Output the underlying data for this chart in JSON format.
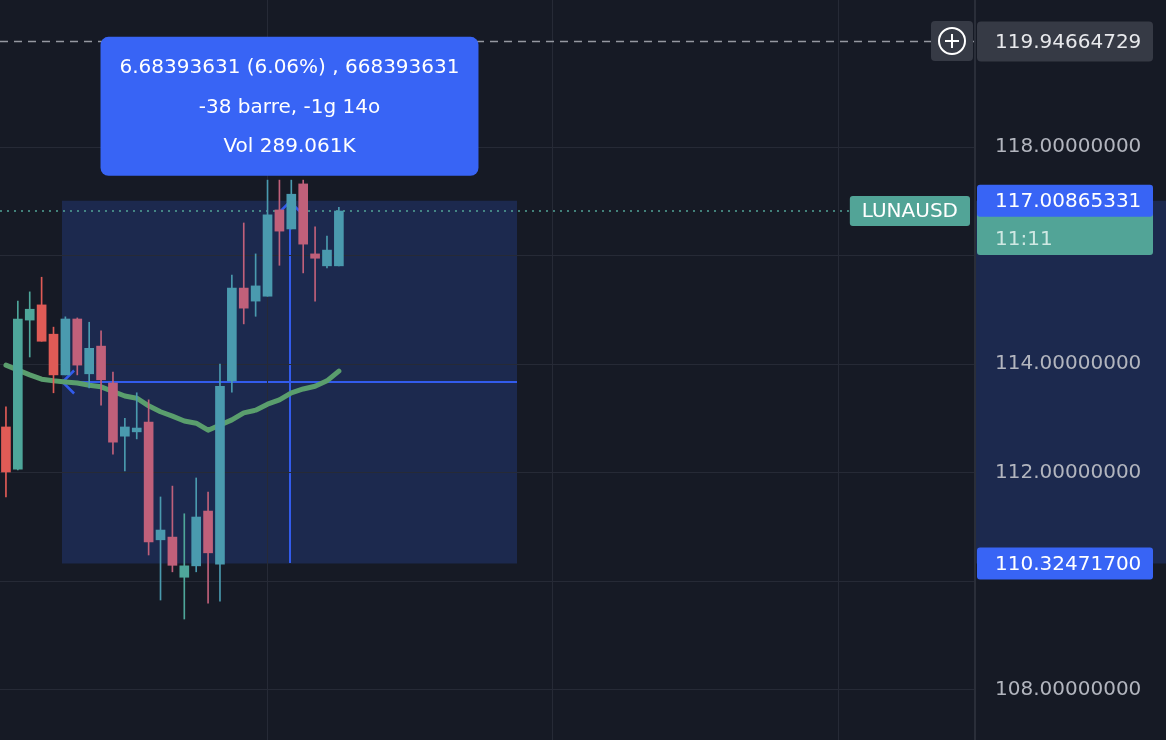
{
  "chart_data": {
    "type": "candlestick",
    "categories": [
      null,
      null,
      null,
      null,
      null,
      null,
      null,
      null,
      null,
      null,
      null,
      null,
      null,
      null,
      null,
      null,
      null,
      null,
      null,
      null,
      null,
      null,
      null,
      null,
      null,
      null,
      null,
      null,
      null,
      null,
      null,
      null,
      null,
      null,
      null,
      null,
      null,
      null,
      null,
      null,
      null,
      null,
      null,
      null,
      null,
      null,
      null,
      null,
      null,
      null,
      null,
      null,
      null,
      null,
      null,
      null,
      null,
      null,
      null,
      null,
      null,
      null,
      null,
      null,
      null,
      null,
      null,
      null,
      null,
      null,
      null,
      null,
      null,
      null,
      null,
      null,
      null,
      null,
      null,
      null,
      null,
      null
    ],
    "ohlc": [
      [
        112.84,
        113.21,
        111.55,
        112.01
      ],
      [
        112.06,
        115.16,
        112.05,
        114.83
      ],
      [
        114.81,
        115.33,
        114.13,
        115.01
      ],
      [
        115.09,
        115.6,
        114.42,
        114.42
      ],
      [
        114.55,
        114.68,
        113.47,
        113.8
      ],
      [
        113.8,
        114.87,
        113.8,
        114.83
      ],
      [
        114.83,
        114.85,
        113.8,
        113.98
      ],
      [
        113.82,
        114.77,
        113.56,
        114.29
      ],
      [
        114.33,
        114.61,
        113.24,
        113.71
      ],
      [
        113.65,
        113.85,
        112.34,
        112.56
      ],
      [
        112.67,
        113.0,
        112.03,
        112.84
      ],
      [
        112.75,
        113.47,
        112.62,
        112.82
      ],
      [
        112.93,
        113.34,
        110.48,
        110.72
      ],
      [
        110.76,
        111.55,
        109.65,
        110.94
      ],
      [
        110.81,
        111.75,
        110.17,
        110.29
      ],
      [
        110.07,
        111.24,
        109.3,
        110.28
      ],
      [
        110.28,
        111.9,
        110.17,
        111.18
      ],
      [
        111.29,
        111.64,
        109.59,
        110.52
      ],
      [
        110.31,
        114.0,
        109.63,
        113.59
      ],
      [
        113.69,
        115.64,
        113.48,
        115.4
      ],
      [
        115.4,
        116.6,
        114.74,
        115.03
      ],
      [
        115.16,
        116.03,
        114.88,
        115.44
      ],
      [
        115.25,
        117.39,
        115.25,
        116.75
      ],
      [
        116.84,
        117.39,
        115.82,
        116.45
      ],
      [
        116.49,
        117.39,
        116.49,
        117.13
      ],
      [
        117.32,
        117.39,
        115.68,
        116.21
      ],
      [
        116.03,
        116.53,
        115.16,
        115.95
      ],
      [
        115.81,
        116.36,
        115.77,
        116.1
      ],
      [
        115.81,
        116.89,
        115.81,
        116.82
      ],
      null,
      null,
      null,
      null,
      null,
      null,
      null,
      null,
      null,
      null,
      null,
      null,
      null,
      null,
      null,
      null,
      null,
      null,
      null,
      null,
      null,
      null,
      null,
      null,
      null,
      null,
      null,
      null,
      null,
      null,
      null,
      null,
      null,
      null,
      null,
      null,
      null,
      null,
      null,
      null,
      null,
      null,
      null,
      null,
      null,
      null,
      null,
      null,
      null,
      null,
      null,
      null,
      null
    ],
    "colors": [
      "#e05b56",
      "#4ea69a",
      "#4ea69a",
      "#e05b56",
      "#e05b56",
      "#4a9aae",
      "#c0607a",
      "#4a9aae",
      "#c0607a",
      "#c0607a",
      "#4a9aae",
      "#4a9aae",
      "#c0607a",
      "#4a9aae",
      "#c0607a",
      "#4ea69a",
      "#4a9aae",
      "#c0607a",
      "#4a9aae",
      "#4a9aae",
      "#c0607a",
      "#4a9aae",
      "#4a9aae",
      "#c0607a",
      "#4a9aae",
      "#c0607a",
      "#c0607a",
      "#4a9aae",
      "#4a9aae",
      null,
      null,
      null,
      null,
      null,
      null,
      null,
      null,
      null,
      null,
      null,
      null,
      null,
      null,
      null,
      null,
      null,
      null,
      null,
      null,
      null,
      null,
      null,
      null,
      null,
      null,
      null,
      null,
      null,
      null,
      null,
      null,
      null,
      null,
      null,
      null,
      null,
      null,
      null,
      null,
      null,
      null,
      null,
      null,
      null,
      null,
      null,
      null,
      null,
      null,
      null,
      null,
      null
    ],
    "series": [
      {
        "type": "line",
        "color": "#5a9e6d",
        "values": [
          113.98,
          null,
          113.8,
          113.72,
          113.69,
          113.67,
          113.65,
          113.61,
          113.58,
          null,
          113.41,
          113.37,
          113.23,
          113.12,
          113.04,
          112.95,
          112.91,
          112.78,
          null,
          112.97,
          113.1,
          113.15,
          113.26,
          113.34,
          113.47,
          113.54,
          113.59,
          113.69,
          113.87,
          null,
          null,
          null,
          null,
          null,
          null,
          null,
          null,
          null,
          null,
          null,
          null,
          null,
          null,
          null,
          null,
          null,
          null,
          null,
          null,
          null,
          null,
          null,
          null,
          null,
          null,
          null,
          null,
          null,
          null,
          null,
          null,
          null,
          null,
          null,
          null,
          null,
          null,
          null,
          null,
          null,
          null,
          null,
          null,
          null,
          null,
          null,
          null,
          null,
          null,
          null,
          null,
          null
        ]
      }
    ],
    "ylim": [
      107.07,
      120.71
    ],
    "yticks": [
      {
        "value": 108,
        "label": "108.00000000"
      },
      {
        "value": 110,
        "label": null
      },
      {
        "value": 112,
        "label": "112.00000000"
      },
      {
        "value": 114,
        "label": "114.00000000"
      },
      {
        "value": 116,
        "label": null
      },
      {
        "value": 118,
        "label": "118.00000000"
      }
    ],
    "tick_labels": "y",
    "grid": true,
    "ref_lines": [
      {
        "axis": "y",
        "value": 119.94664729,
        "label": "119.94664729",
        "color": "#9598a1",
        "line_style": "dashed"
      },
      {
        "axis": "y",
        "value": 116.82,
        "label": "LUNAUSD",
        "color": "#52a497",
        "line_style": "dotted"
      }
    ],
    "bands": [
      {
        "axis": "y",
        "from": 110.324717,
        "to": 117.00865331,
        "color": "#1d2a4f"
      }
    ],
    "annotations": [
      "6.68393631 (6.06%) , 668393631",
      "-38 barre, -1g 14o",
      "Vol 289.061K",
      "117.00865331",
      "110.32471700",
      "11:11"
    ]
  }
}
